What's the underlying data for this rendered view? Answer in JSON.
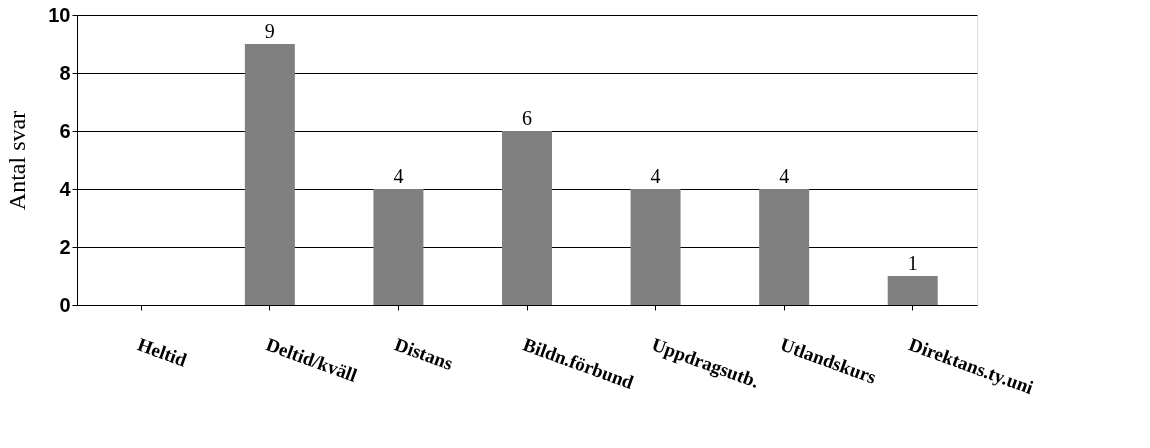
{
  "chart_data": {
    "type": "bar",
    "ylabel": "Antal svar",
    "categories": [
      "Heltid",
      "Deltid/kväll",
      "Distans",
      "Bildn.förbund",
      "Uppdragsutb.",
      "Utlandskurs",
      "Direktans.ty.uni"
    ],
    "values": [
      0,
      9,
      4,
      6,
      4,
      4,
      1
    ],
    "value_labels": [
      null,
      "9",
      "4",
      "6",
      "4",
      "4",
      "1"
    ],
    "color": "#808080",
    "ylim": [
      0,
      10
    ],
    "yticks": [
      0,
      2,
      4,
      6,
      8,
      10
    ],
    "grid": "y"
  }
}
